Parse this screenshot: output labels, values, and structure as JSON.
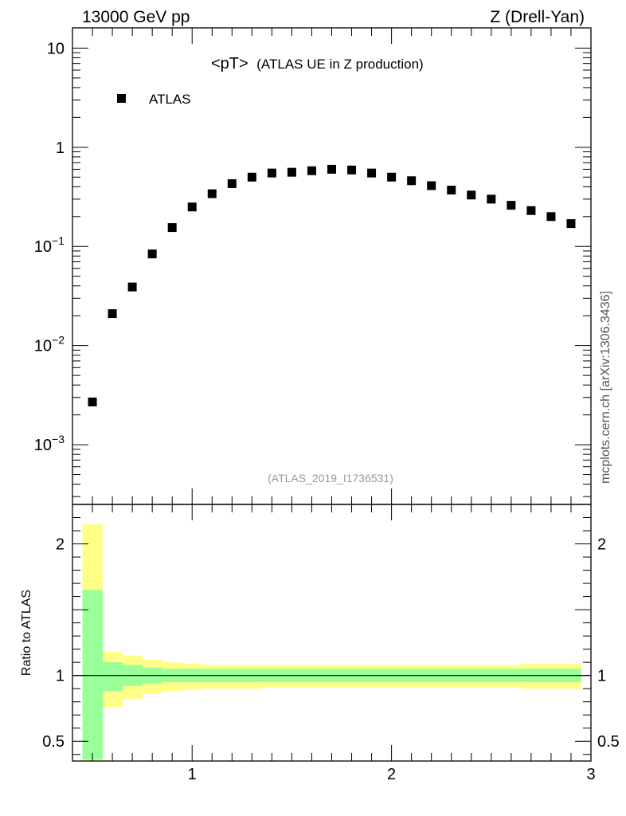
{
  "header": {
    "left": "13000 GeV pp",
    "right": "Z (Drell-Yan)"
  },
  "side_label": "mcplots.cern.ch [arXiv:1306.3436]",
  "watermark": "(ATLAS_2019_I1736531)",
  "chart_data": [
    {
      "type": "scatter",
      "panel": "main",
      "title_main": "<pT>",
      "title_rest": "(ATLAS UE in Z production)",
      "yscale": "log",
      "xlim": [
        0.4,
        3.0
      ],
      "ylim": [
        0.00025,
        16
      ],
      "legend": {
        "label": "ATLAS",
        "placement": "top-left"
      },
      "y_ticks": [
        {
          "value": 10,
          "base": "10",
          "exp": ""
        },
        {
          "value": 1,
          "base": "1",
          "exp": ""
        },
        {
          "value": 0.1,
          "base": "10",
          "exp": "−1"
        },
        {
          "value": 0.01,
          "base": "10",
          "exp": "−2"
        },
        {
          "value": 0.001,
          "base": "10",
          "exp": "−3"
        }
      ],
      "series": [
        {
          "name": "ATLAS",
          "color": "#000000",
          "x": [
            0.5,
            0.6,
            0.7,
            0.8,
            0.9,
            1.0,
            1.1,
            1.2,
            1.3,
            1.4,
            1.5,
            1.6,
            1.7,
            1.8,
            1.9,
            2.0,
            2.1,
            2.2,
            2.3,
            2.4,
            2.5,
            2.6,
            2.7,
            2.8,
            2.9
          ],
          "y": [
            0.0027,
            0.021,
            0.039,
            0.084,
            0.155,
            0.25,
            0.34,
            0.43,
            0.5,
            0.55,
            0.56,
            0.58,
            0.6,
            0.59,
            0.55,
            0.5,
            0.46,
            0.41,
            0.37,
            0.33,
            0.3,
            0.26,
            0.23,
            0.2,
            0.17
          ]
        }
      ]
    },
    {
      "type": "area",
      "panel": "ratio",
      "ylabel": "Ratio to ATLAS",
      "xlim": [
        0.4,
        3.0
      ],
      "ylim": [
        0.35,
        2.3
      ],
      "x_ticks": [
        {
          "value": 1,
          "label": "1"
        },
        {
          "value": 2,
          "label": "2"
        },
        {
          "value": 3,
          "label": "3"
        }
      ],
      "y_ticks": [
        {
          "value": 2,
          "label": "2"
        },
        {
          "value": 1,
          "label": "1"
        },
        {
          "value": 0.5,
          "label": "0.5"
        }
      ],
      "reference_line": 1.0,
      "bins": [
        0.45,
        0.55,
        0.65,
        0.75,
        0.85,
        0.95,
        1.05,
        1.15,
        1.25,
        1.35,
        1.45,
        1.55,
        1.65,
        1.75,
        1.85,
        1.95,
        2.05,
        2.15,
        2.25,
        2.35,
        2.45,
        2.55,
        2.65,
        2.75,
        2.85,
        2.95
      ],
      "bands": [
        {
          "name": "total uncertainty",
          "color": "#ffff88",
          "lower": [
            0.33,
            0.76,
            0.82,
            0.86,
            0.88,
            0.89,
            0.9,
            0.9,
            0.9,
            0.91,
            0.91,
            0.91,
            0.91,
            0.91,
            0.91,
            0.91,
            0.91,
            0.91,
            0.91,
            0.91,
            0.91,
            0.91,
            0.9,
            0.9,
            0.9
          ],
          "upper": [
            2.15,
            1.18,
            1.15,
            1.12,
            1.1,
            1.09,
            1.08,
            1.08,
            1.08,
            1.08,
            1.08,
            1.08,
            1.08,
            1.08,
            1.08,
            1.08,
            1.08,
            1.08,
            1.08,
            1.08,
            1.08,
            1.08,
            1.09,
            1.09,
            1.09
          ]
        },
        {
          "name": "statistical uncertainty",
          "color": "#99ff99",
          "lower": [
            0.36,
            0.88,
            0.92,
            0.94,
            0.95,
            0.95,
            0.95,
            0.95,
            0.95,
            0.95,
            0.95,
            0.95,
            0.95,
            0.95,
            0.95,
            0.95,
            0.95,
            0.95,
            0.95,
            0.95,
            0.95,
            0.95,
            0.95,
            0.95,
            0.95
          ],
          "upper": [
            1.65,
            1.1,
            1.08,
            1.06,
            1.05,
            1.05,
            1.05,
            1.05,
            1.05,
            1.05,
            1.05,
            1.05,
            1.05,
            1.05,
            1.05,
            1.05,
            1.05,
            1.05,
            1.05,
            1.05,
            1.05,
            1.05,
            1.05,
            1.05,
            1.05
          ]
        }
      ]
    }
  ]
}
